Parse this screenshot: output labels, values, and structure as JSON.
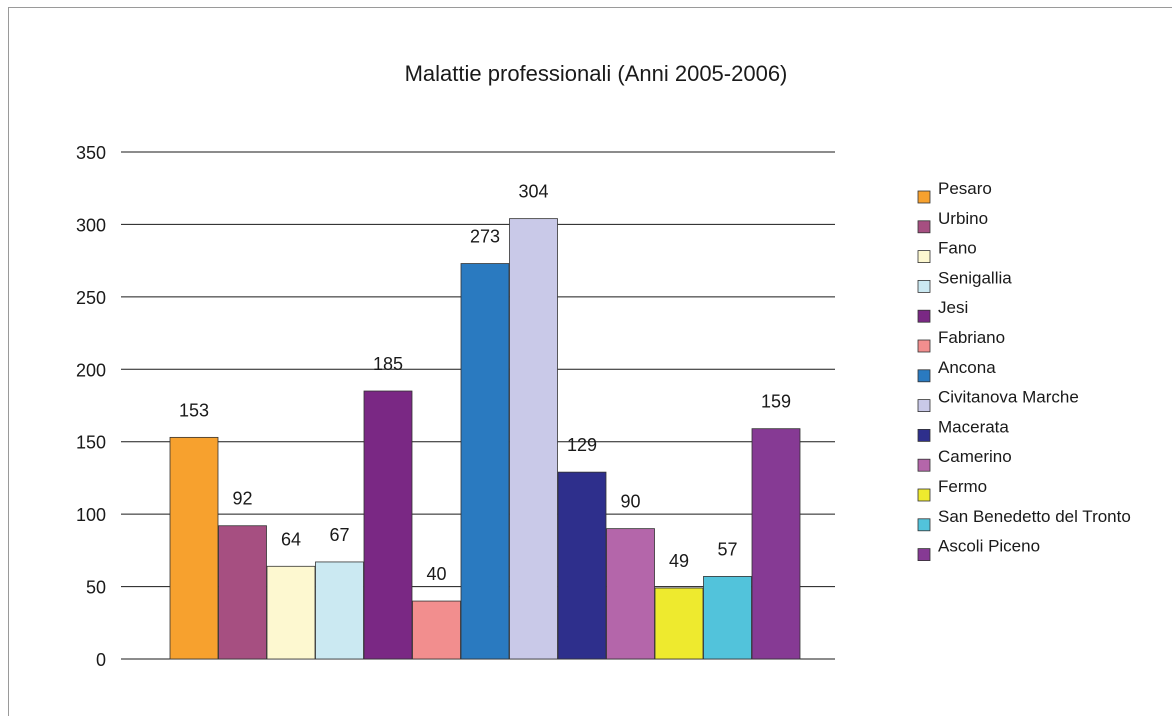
{
  "chart_data": {
    "type": "bar",
    "title": "Malattie professionali (Anni 2005-2006)",
    "xlabel": "",
    "ylabel": "",
    "ylim": [
      0,
      350
    ],
    "yticks": [
      0,
      50,
      100,
      150,
      200,
      250,
      300,
      350
    ],
    "grid": true,
    "legend_position": "right",
    "data_labels": true,
    "series": [
      {
        "name": "Pesaro",
        "value": 153,
        "color": "#f7a12e"
      },
      {
        "name": "Urbino",
        "value": 92,
        "color": "#a64f81"
      },
      {
        "name": "Fano",
        "value": 64,
        "color": "#fdf8d0"
      },
      {
        "name": "Senigallia",
        "value": 67,
        "color": "#cbe9f2"
      },
      {
        "name": "Jesi",
        "value": 185,
        "color": "#7a2884"
      },
      {
        "name": "Fabriano",
        "value": 40,
        "color": "#f28e8e"
      },
      {
        "name": "Ancona",
        "value": 273,
        "color": "#2a7ac0"
      },
      {
        "name": "Civitanova Marche",
        "value": 304,
        "color": "#c9c9e8"
      },
      {
        "name": "Macerata",
        "value": 129,
        "color": "#2e2f8c"
      },
      {
        "name": "Camerino",
        "value": 90,
        "color": "#b466aa"
      },
      {
        "name": "Fermo",
        "value": 49,
        "color": "#eeea2e"
      },
      {
        "name": "San Benedetto del Tronto",
        "value": 57,
        "color": "#52c3db"
      },
      {
        "name": "Ascoli Piceno",
        "value": 159,
        "color": "#863a94"
      }
    ]
  }
}
